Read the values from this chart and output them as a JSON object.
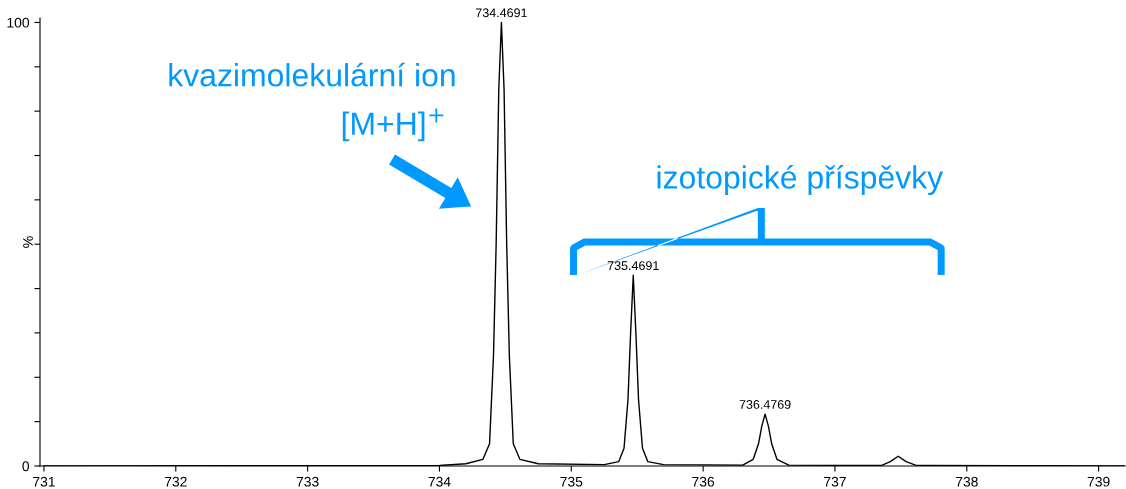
{
  "chart_data": {
    "type": "line",
    "ylabel": "%",
    "xlim": [
      730.97,
      739.2
    ],
    "xticks": [
      731,
      732,
      733,
      734,
      735,
      736,
      737,
      738,
      739
    ],
    "ylim": [
      0,
      101
    ],
    "yticks": [
      0,
      {
        "value": 10,
        "label": null
      },
      {
        "value": 20,
        "label": null
      },
      {
        "value": 30,
        "label": null
      },
      {
        "value": 40,
        "label": null
      },
      {
        "value": 50,
        "label": null
      },
      {
        "value": 60,
        "label": null
      },
      {
        "value": 70,
        "label": null
      },
      {
        "value": 80,
        "label": null
      },
      {
        "value": 90,
        "label": null
      },
      100
    ],
    "grid": false,
    "legend": false,
    "marker": "none",
    "line_style": "solid",
    "series": [
      {
        "color": "#000000",
        "x": [
          731,
          734.0,
          734.2,
          734.33,
          734.38,
          734.41,
          734.43,
          734.45,
          734.47,
          734.49,
          734.51,
          734.53,
          734.56,
          734.61,
          734.75,
          735.25,
          735.36,
          735.4,
          735.43,
          735.45,
          735.47,
          735.49,
          735.51,
          735.54,
          735.58,
          735.7,
          736.3,
          736.38,
          736.42,
          736.445,
          736.47,
          736.495,
          736.52,
          736.56,
          736.65,
          737.35,
          737.42,
          737.48,
          737.54,
          737.62,
          739.2
        ],
        "values": [
          0,
          0.1,
          0.5,
          1.5,
          5,
          25,
          50,
          85,
          100,
          85,
          50,
          25,
          5,
          1.5,
          0.5,
          0.3,
          1,
          4,
          15,
          30,
          43,
          30,
          15,
          4,
          1,
          0.3,
          0.2,
          1.5,
          5,
          9,
          11.7,
          9,
          5,
          1.5,
          0.2,
          0.1,
          1,
          2.2,
          1,
          0.1,
          0
        ]
      }
    ],
    "annotations": [
      {
        "text": "734.4691",
        "x": 734.47,
        "y": 100
      },
      {
        "text": "735.4691",
        "x": 735.47,
        "y": 43
      },
      {
        "text": "736.4769",
        "x": 736.47,
        "y": 11.7
      },
      "kvazimolekulární ion",
      "[M+H]$^{+}$",
      "izotopické příspěvky"
    ]
  }
}
